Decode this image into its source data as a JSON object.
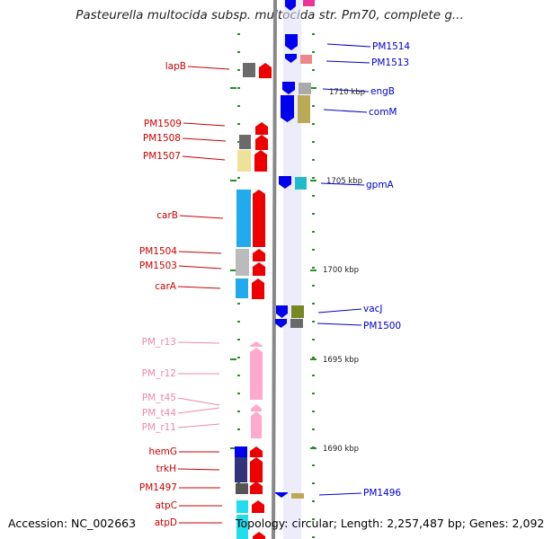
{
  "title": "Pasteurella multocida subsp. multocida str. Pm70, complete g...",
  "footer": {
    "accession": "Accession: NC_002663",
    "topology": "Topology: circular; Length: 2,257,487 bp; Genes: 2,092"
  },
  "colors": {
    "backbone": "#888888",
    "tick": "#2e8b2e",
    "reverse_label": "#cc0000",
    "forward_label": "#0000cc",
    "rna_label": "#ee88aa"
  },
  "scale_labels": [
    "1710 kbp",
    "1705 kbp",
    "1700 kbp",
    "1695 kbp",
    "1690 kbp"
  ],
  "left_labels": [
    "lapB",
    "PM1509",
    "PM1508",
    "PM1507",
    "carB",
    "PM1504",
    "PM1503",
    "carA",
    "PM_r13",
    "PM_r12",
    "PM_t45",
    "PM_t44",
    "PM_r11",
    "hemG",
    "trkH",
    "PM1497",
    "atpC",
    "atpD"
  ],
  "right_labels": [
    "PM1514",
    "PM1513",
    "engB",
    "comM",
    "gpmA",
    "vacJ",
    "PM1500",
    "PM1496"
  ]
}
